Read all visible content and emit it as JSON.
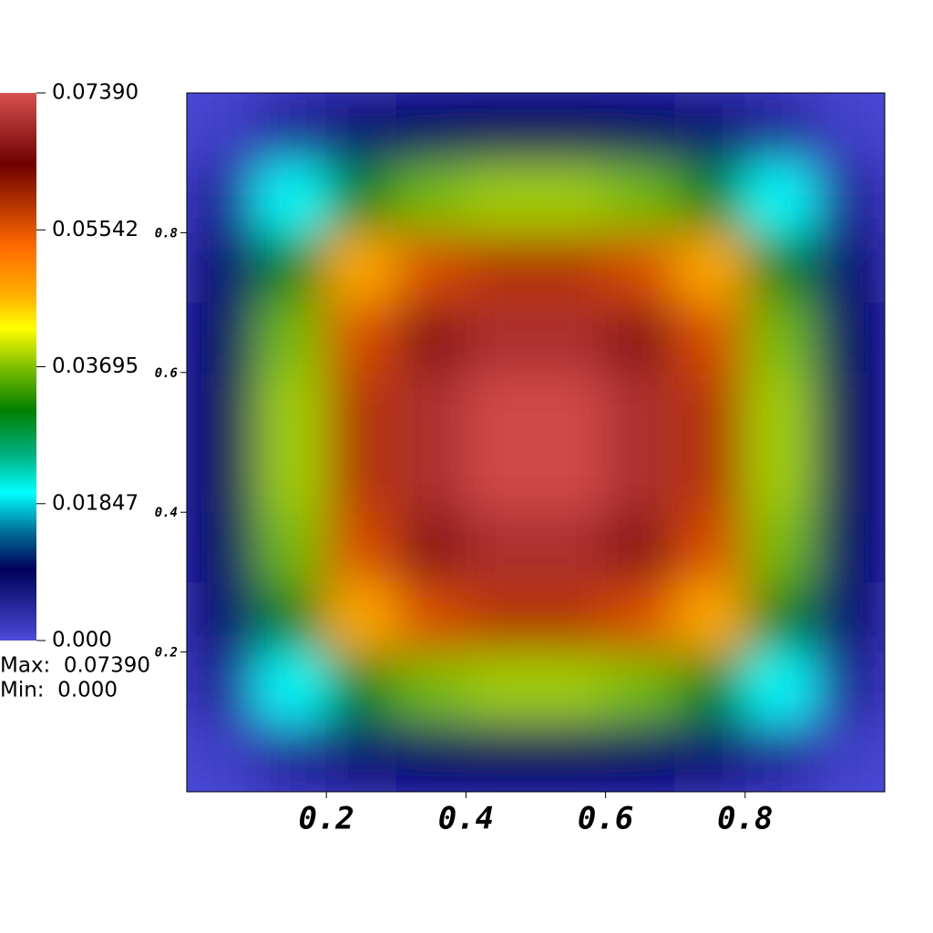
{
  "chart_data": {
    "type": "heatmap",
    "x": [
      0.05,
      0.15,
      0.25,
      0.35,
      0.45,
      0.55,
      0.65,
      0.75,
      0.85,
      0.95
    ],
    "y": [
      0.05,
      0.15,
      0.25,
      0.35,
      0.45,
      0.55,
      0.65,
      0.75,
      0.85,
      0.95
    ],
    "z": [
      [
        0.0013,
        0.005,
        0.0077,
        0.0091,
        0.0096,
        0.0096,
        0.0091,
        0.0077,
        0.005,
        0.0013
      ],
      [
        0.005,
        0.02,
        0.0307,
        0.0365,
        0.0382,
        0.0382,
        0.0365,
        0.0307,
        0.02,
        0.005
      ],
      [
        0.0077,
        0.0307,
        0.0473,
        0.0562,
        0.0588,
        0.0588,
        0.0562,
        0.0473,
        0.0307,
        0.0077
      ],
      [
        0.0091,
        0.0365,
        0.0562,
        0.0667,
        0.0699,
        0.0699,
        0.0667,
        0.0562,
        0.0365,
        0.0091
      ],
      [
        0.0096,
        0.0382,
        0.0588,
        0.0699,
        0.0732,
        0.0732,
        0.0699,
        0.0588,
        0.0382,
        0.0096
      ],
      [
        0.0096,
        0.0382,
        0.0588,
        0.0699,
        0.0732,
        0.0732,
        0.0699,
        0.0588,
        0.0382,
        0.0096
      ],
      [
        0.0091,
        0.0365,
        0.0562,
        0.0667,
        0.0699,
        0.0699,
        0.0667,
        0.0562,
        0.0365,
        0.0091
      ],
      [
        0.0077,
        0.0307,
        0.0473,
        0.0562,
        0.0588,
        0.0588,
        0.0562,
        0.0473,
        0.0307,
        0.0077
      ],
      [
        0.005,
        0.02,
        0.0307,
        0.0365,
        0.0382,
        0.0382,
        0.0365,
        0.0307,
        0.02,
        0.005
      ],
      [
        0.0013,
        0.005,
        0.0077,
        0.0091,
        0.0096,
        0.0096,
        0.0091,
        0.0077,
        0.005,
        0.0013
      ]
    ],
    "xlim": [
      0,
      1
    ],
    "ylim": [
      0,
      1
    ],
    "xticks": [
      0.2,
      0.4,
      0.6,
      0.8
    ],
    "yticks": [
      0.2,
      0.4,
      0.6,
      0.8
    ],
    "clim": [
      0,
      0.0739
    ],
    "colorbar_ticks": [
      {
        "value": 0.0739,
        "label": "0.07390"
      },
      {
        "value": 0.05542,
        "label": "0.05542"
      },
      {
        "value": 0.03695,
        "label": "0.03695"
      },
      {
        "value": 0.01847,
        "label": "0.01847"
      },
      {
        "value": 0,
        "label": "0.000"
      }
    ],
    "colorscale": [
      [
        0,
        "#4b4bd9"
      ],
      [
        0.13,
        "#00005a"
      ],
      [
        0.2,
        "#00709a"
      ],
      [
        0.27,
        "#00ffff"
      ],
      [
        0.34,
        "#00b080"
      ],
      [
        0.42,
        "#008000"
      ],
      [
        0.5,
        "#80c000"
      ],
      [
        0.57,
        "#ffff00"
      ],
      [
        0.63,
        "#ffb000"
      ],
      [
        0.72,
        "#ff6a00"
      ],
      [
        0.87,
        "#6e0000"
      ],
      [
        1,
        "#d85050"
      ]
    ],
    "annotations": [
      "Max:  0.07390",
      "Min:  0.000"
    ]
  }
}
